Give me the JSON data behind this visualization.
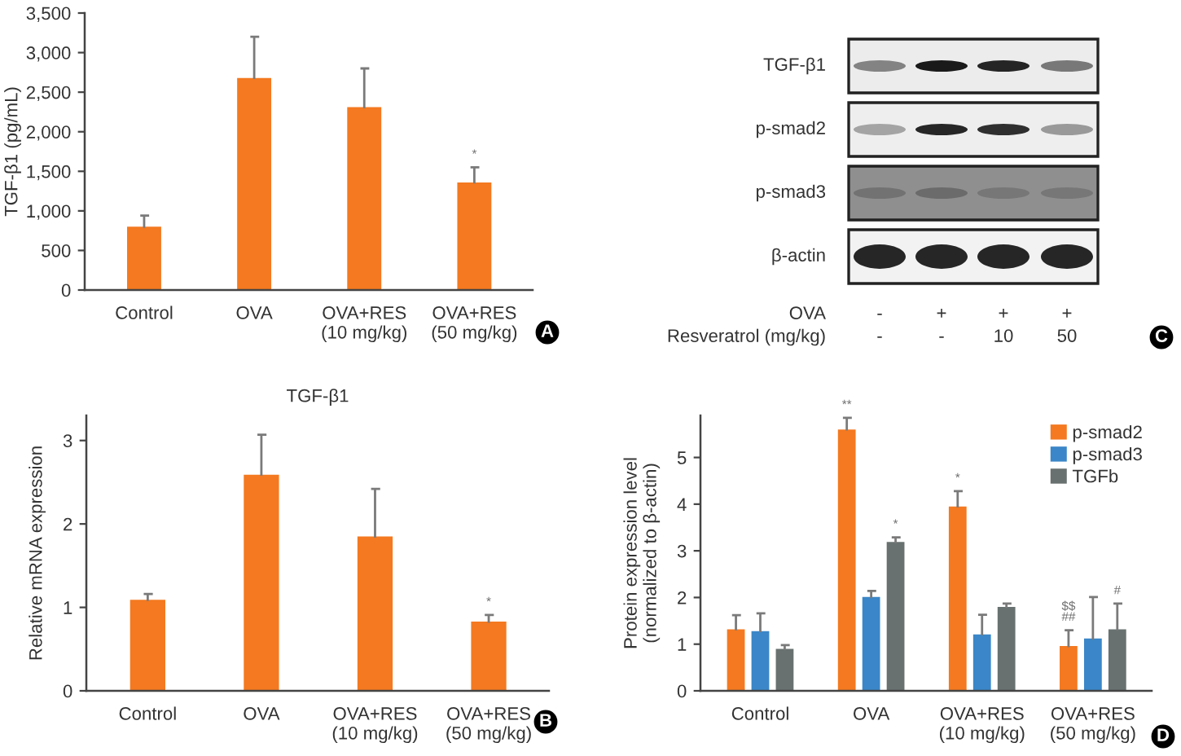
{
  "chart_data": [
    {
      "type": "bar",
      "ylabel": "TGF-β1 (pg/mL)",
      "categories": [
        "Control",
        "OVA",
        "OVA+RES\n(10 mg/kg)",
        "OVA+RES\n(50 mg/kg)"
      ],
      "values": [
        800,
        2680,
        2310,
        1360
      ],
      "color": "#f47920",
      "errors": [
        [
          800,
          940
        ],
        [
          2680,
          3200
        ],
        [
          2310,
          2800
        ],
        [
          1360,
          1550
        ]
      ],
      "ylim": [
        0,
        3500
      ],
      "yticks": [
        0,
        500,
        {
          "value": 1000,
          "label": "1,000"
        },
        {
          "value": 1500,
          "label": "1,500"
        },
        {
          "value": 2000,
          "label": "2,000"
        },
        {
          "value": 2500,
          "label": "2,500"
        },
        {
          "value": 3000,
          "label": "3,000"
        },
        {
          "value": 3500,
          "label": "3,500"
        }
      ],
      "annotations": [
        {
          "text": "*",
          "x": "OVA+RES\n(50 mg/kg)",
          "y": 1550
        },
        "A"
      ]
    },
    {
      "type": "other",
      "categories": [
        "TGF-β1",
        "p-smad2",
        "p-smad3",
        "β-actin"
      ],
      "annotations": [
        "OVA",
        "-",
        "+",
        "+",
        "+",
        "Resveratrol (mg/kg)",
        "-",
        "-",
        "10",
        "50",
        "C"
      ]
    },
    {
      "type": "bar",
      "title": "TGF-β1",
      "ylabel": "Relative mRNA expression",
      "categories": [
        "Control",
        "OVA",
        "OVA+RES\n(10 mg/kg)",
        "OVA+RES\n(50 mg/kg)"
      ],
      "values": [
        1.09,
        2.59,
        1.85,
        0.83
      ],
      "color": "#f47920",
      "errors": [
        [
          1.09,
          1.16
        ],
        [
          2.59,
          3.07
        ],
        [
          1.85,
          2.42
        ],
        [
          0.83,
          0.91
        ]
      ],
      "ylim": [
        0,
        3.3
      ],
      "yticks": [
        0,
        1,
        2,
        3
      ],
      "annotations": [
        {
          "text": "*",
          "x": "OVA+RES\n(50 mg/kg)",
          "y": 0.91
        },
        "B"
      ]
    },
    {
      "type": "bar",
      "ylabel": "Protein expression level\n(normalized to β-actin)",
      "categories": [
        "Control",
        "OVA",
        "OVA+RES\n(10 mg/kg)",
        "OVA+RES\n(50 mg/kg)"
      ],
      "series": [
        {
          "name": "p-smad2",
          "color": "#f47920",
          "values": [
            1.32,
            5.6,
            3.95,
            0.96
          ],
          "errors": [
            [
              1.32,
              1.62
            ],
            [
              5.6,
              5.85
            ],
            [
              3.95,
              4.28
            ],
            [
              0.96,
              1.3
            ]
          ]
        },
        {
          "name": "p-smad3",
          "color": "#3a86c8",
          "values": [
            1.28,
            2.01,
            1.21,
            1.12
          ],
          "errors": [
            [
              1.28,
              1.66
            ],
            [
              2.01,
              2.14
            ],
            [
              1.21,
              1.63
            ],
            [
              1.12,
              2.01
            ]
          ]
        },
        {
          "name": "TGFb",
          "color": "#687170",
          "values": [
            0.9,
            3.19,
            1.8,
            1.32
          ],
          "errors": [
            [
              0.9,
              0.98
            ],
            [
              3.19,
              3.29
            ],
            [
              1.8,
              1.87
            ],
            [
              1.32,
              1.87
            ]
          ]
        }
      ],
      "ylim": [
        0,
        5.9
      ],
      "yticks": [
        0,
        1,
        2,
        3,
        4,
        5
      ],
      "legend": "top right",
      "annotations": [
        "**",
        "*",
        "*",
        "$$\n##",
        "#",
        "D"
      ]
    }
  ]
}
